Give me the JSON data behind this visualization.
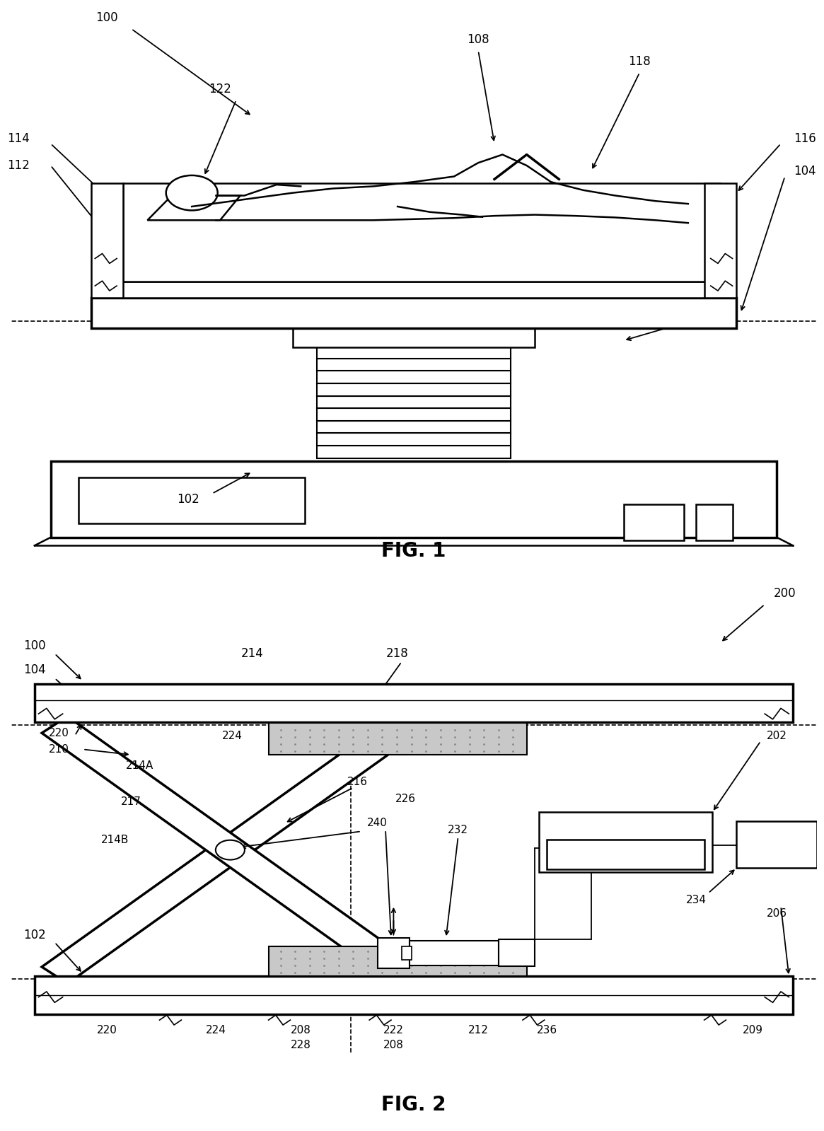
{
  "background_color": "#ffffff",
  "fig1_title": "FIG. 1",
  "fig2_title": "FIG. 2",
  "lw_main": 1.8,
  "lw_thick": 2.5,
  "lw_beam": 2.0,
  "beam_gray": "#888888",
  "pad_gray": "#c8c8c8"
}
